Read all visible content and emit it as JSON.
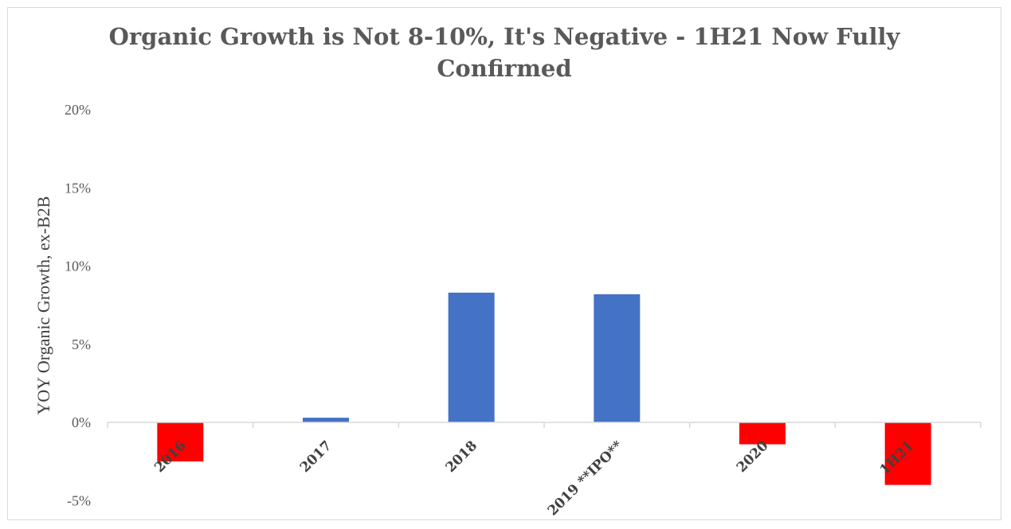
{
  "chart_data": {
    "type": "bar",
    "title_lines": [
      "Organic Growth is Not 8-10%, It's Negative - 1H21 Now Fully",
      "Confirmed"
    ],
    "xlabel": "",
    "ylabel": "YOY Organic Growth, ex-B2B",
    "categories": [
      "2016",
      "2017",
      "2018",
      "2019 **IPO**",
      "2020",
      "1H21"
    ],
    "values": [
      -2.5,
      0.3,
      8.3,
      8.2,
      -1.4,
      -4.0
    ],
    "ylim": [
      -5,
      20
    ],
    "yticks": [
      -5,
      0,
      5,
      10,
      15,
      20
    ],
    "ytick_labels": [
      "-5%",
      "0%",
      "5%",
      "10%",
      "15%",
      "20%"
    ],
    "colors": {
      "positive": "#4472c4",
      "negative": "#ff0000",
      "axis": "#d9d9d9"
    },
    "grid": false,
    "legend": "none"
  }
}
